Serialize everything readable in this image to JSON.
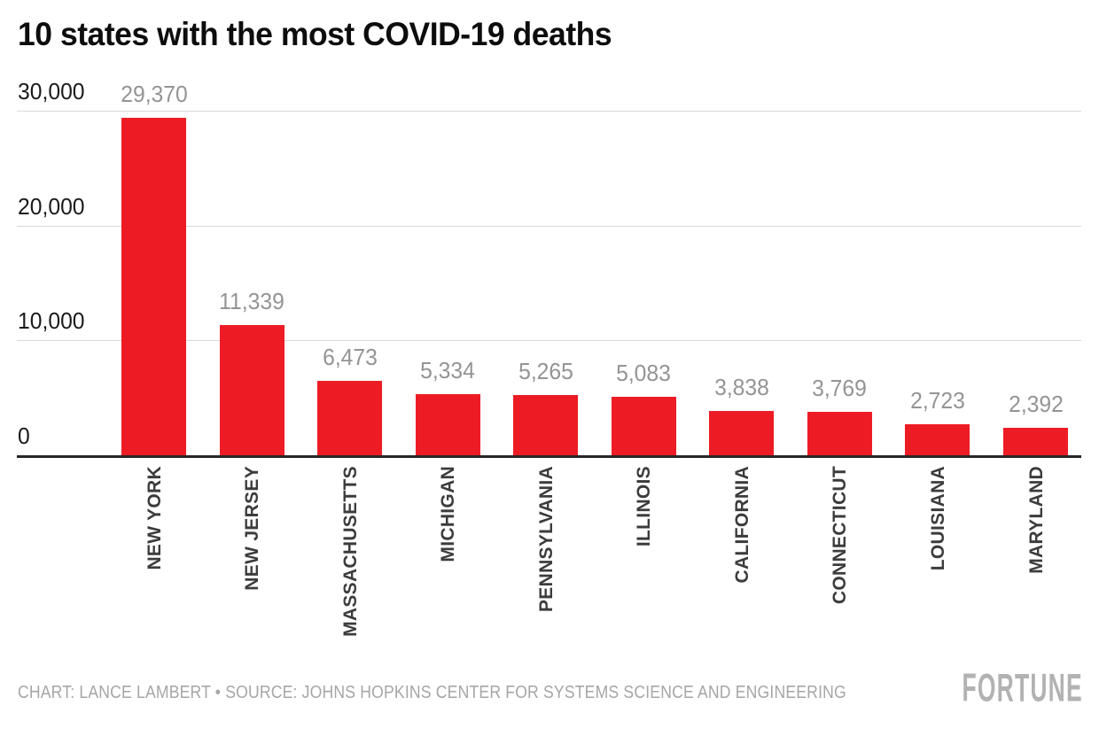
{
  "header": {
    "title": "10 states with the most COVID-19 deaths"
  },
  "chart_data": {
    "type": "bar",
    "title": "10 states with the most COVID-19 deaths",
    "categories": [
      "NEW YORK",
      "NEW JERSEY",
      "MASSACHUSETTS",
      "MICHIGAN",
      "PENNSYLVANIA",
      "ILLINOIS",
      "CALIFORNIA",
      "CONNECTICUT",
      "LOUISIANA",
      "MARYLAND"
    ],
    "values": [
      29370,
      11339,
      6473,
      5334,
      5265,
      5083,
      3838,
      3769,
      2723,
      2392
    ],
    "value_labels": [
      "29,370",
      "11,339",
      "6,473",
      "5,334",
      "5,265",
      "5,083",
      "3,838",
      "3,769",
      "2,723",
      "2,392"
    ],
    "xlabel": "",
    "ylabel": "",
    "ylim": [
      0,
      30000
    ],
    "y_ticks": {
      "values": [
        0,
        10000,
        20000,
        30000
      ],
      "labels": [
        "0",
        "10,000",
        "20,000",
        "30,000"
      ]
    },
    "grid": "horizontal",
    "legend": "none",
    "colors": {
      "bar": "#ED1C24",
      "value_label": "#949494",
      "axis_tick": "#1a1a1a",
      "gridline": "#d8d8d8",
      "baseline": "#262626",
      "category_label": "#3c3c3c"
    }
  },
  "footer": {
    "credit": "CHART: LANCE LAMBERT • SOURCE: JOHNS HOPKINS CENTER FOR SYSTEMS SCIENCE AND ENGINEERING",
    "logo": "FORTUNE"
  }
}
